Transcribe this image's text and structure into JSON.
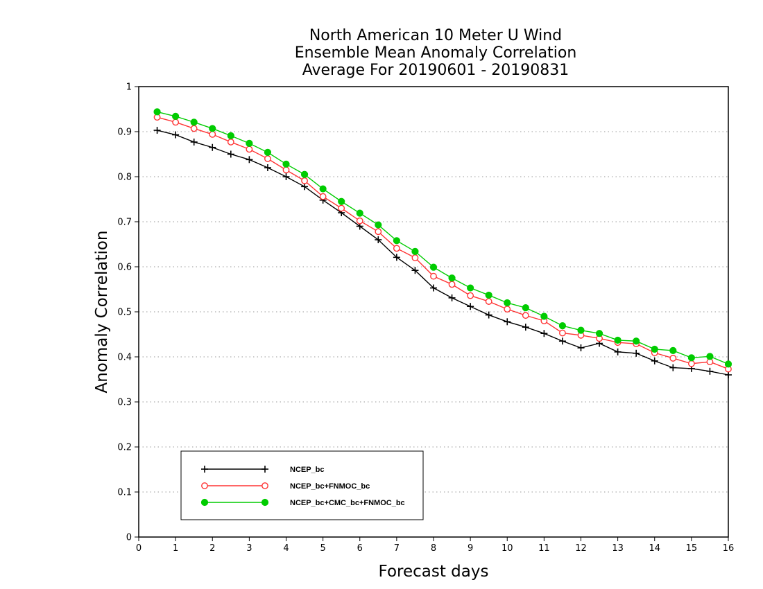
{
  "chart_data": {
    "type": "line",
    "title_lines": [
      "North American 10 Meter U Wind",
      "Ensemble Mean Anomaly Correlation",
      "Average For 20190601 - 20190831"
    ],
    "xlabel": "Forecast days",
    "ylabel": "Anomaly Correlation",
    "xlim": [
      0,
      16
    ],
    "ylim": [
      0,
      1
    ],
    "xticks": [
      "0",
      "1",
      "2",
      "3",
      "4",
      "5",
      "6",
      "7",
      "8",
      "9",
      "10",
      "11",
      "12",
      "13",
      "14",
      "15",
      "16"
    ],
    "yticks": [
      "0",
      "0.1",
      "0.2",
      "0.3",
      "0.4",
      "0.5",
      "0.6",
      "0.7",
      "0.8",
      "0.9",
      "1"
    ],
    "grid": "horizontal-dotted",
    "legend_position": "bottom-left",
    "x": [
      0.5,
      1,
      1.5,
      2,
      2.5,
      3,
      3.5,
      4,
      4.5,
      5,
      5.5,
      6,
      6.5,
      7,
      7.5,
      8,
      8.5,
      9,
      9.5,
      10,
      10.5,
      11,
      11.5,
      12,
      12.5,
      13,
      13.5,
      14,
      14.5,
      15,
      15.5,
      16
    ],
    "series": [
      {
        "name": "NCEP_bc",
        "color": "#000000",
        "marker": "plus",
        "values": [
          0.903,
          0.893,
          0.877,
          0.865,
          0.85,
          0.838,
          0.82,
          0.8,
          0.778,
          0.748,
          0.72,
          0.69,
          0.66,
          0.621,
          0.592,
          0.553,
          0.531,
          0.512,
          0.493,
          0.478,
          0.466,
          0.452,
          0.435,
          0.42,
          0.43,
          0.411,
          0.408,
          0.391,
          0.376,
          0.374,
          0.368,
          0.36
        ]
      },
      {
        "name": "NCEP_bc+FNMOC_bc",
        "color": "#ff3333",
        "marker": "open-circle",
        "values": [
          0.932,
          0.921,
          0.907,
          0.894,
          0.877,
          0.861,
          0.84,
          0.815,
          0.791,
          0.756,
          0.73,
          0.702,
          0.678,
          0.641,
          0.62,
          0.579,
          0.561,
          0.536,
          0.523,
          0.506,
          0.492,
          0.48,
          0.453,
          0.448,
          0.441,
          0.432,
          0.429,
          0.409,
          0.397,
          0.385,
          0.389,
          0.373
        ]
      },
      {
        "name": "NCEP_bc+CMC_bc+FNMOC_bc",
        "color": "#00cc00",
        "marker": "filled-circle",
        "values": [
          0.944,
          0.934,
          0.921,
          0.907,
          0.891,
          0.874,
          0.854,
          0.828,
          0.805,
          0.773,
          0.745,
          0.719,
          0.693,
          0.658,
          0.634,
          0.599,
          0.575,
          0.553,
          0.537,
          0.52,
          0.509,
          0.49,
          0.469,
          0.459,
          0.452,
          0.437,
          0.435,
          0.417,
          0.414,
          0.398,
          0.401,
          0.384
        ]
      }
    ]
  }
}
